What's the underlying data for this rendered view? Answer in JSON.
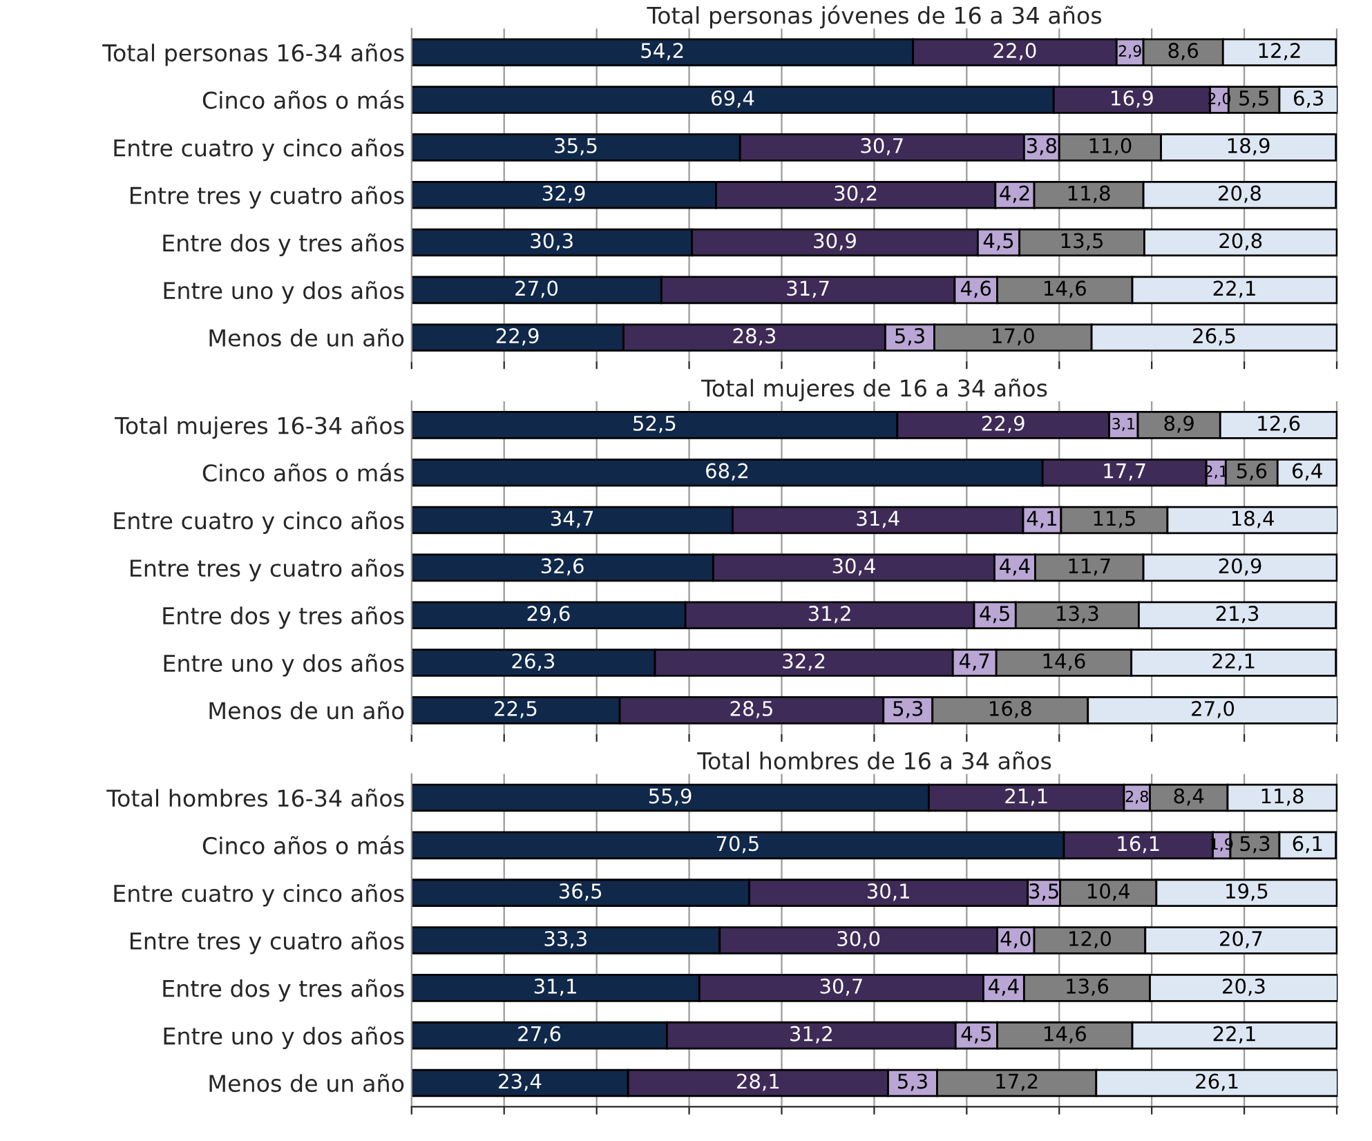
{
  "chart_data": [
    {
      "type": "bar",
      "title": "Total personas jóvenes de 16 a 34 años",
      "orientation": "horizontal",
      "stacked": true,
      "grid": "x",
      "tick_labels": "y",
      "categories": [
        "Total personas 16-34 años",
        "Cinco años o más",
        "Entre cuatro y cinco años",
        "Entre tres y cuatro años",
        "Entre dos y tres años",
        "Entre uno y dos años",
        "Menos de un año"
      ],
      "series": [
        {
          "color": "#10284a",
          "values": [
            54.2,
            69.4,
            35.5,
            32.9,
            30.3,
            27.0,
            22.9
          ],
          "value_labels": [
            "54,2",
            "69,4",
            "35,5",
            "32,9",
            "30,3",
            "27,0",
            "22,9"
          ]
        },
        {
          "color": "#3f2b57",
          "values": [
            22.0,
            16.9,
            30.7,
            30.2,
            30.9,
            31.7,
            28.3
          ],
          "value_labels": [
            "22,0",
            "16,9",
            "30,7",
            "30,2",
            "30,9",
            "31,7",
            "28,3"
          ]
        },
        {
          "color": "#b9a6d4",
          "values": [
            2.9,
            2.0,
            3.8,
            4.2,
            4.5,
            4.6,
            5.3
          ],
          "value_labels": [
            "2,9",
            "2,0",
            "3,8",
            "4,2",
            "4,5",
            "4,6",
            "5,3"
          ]
        },
        {
          "color": "#808080",
          "values": [
            8.6,
            5.5,
            11.0,
            11.8,
            13.5,
            14.6,
            17.0
          ],
          "value_labels": [
            "8,6",
            "5,5",
            "11,0",
            "11,8",
            "13,5",
            "14,6",
            "17,0"
          ]
        },
        {
          "color": "#dde7f3",
          "values": [
            12.2,
            6.3,
            18.9,
            20.8,
            20.8,
            22.1,
            26.5
          ],
          "value_labels": [
            "12,2",
            "6,3",
            "18,9",
            "20,8",
            "20,8",
            "22,1",
            "26,5"
          ]
        }
      ]
    },
    {
      "type": "bar",
      "title": "Total mujeres de 16 a 34 años",
      "orientation": "horizontal",
      "stacked": true,
      "grid": "x",
      "tick_labels": "y",
      "categories": [
        "Total mujeres 16-34 años",
        "Cinco años o más",
        "Entre cuatro y cinco años",
        "Entre tres y cuatro años",
        "Entre dos y tres años",
        "Entre uno y dos años",
        "Menos de un año"
      ],
      "series": [
        {
          "color": "#10284a",
          "values": [
            52.5,
            68.2,
            34.7,
            32.6,
            29.6,
            26.3,
            22.5
          ],
          "value_labels": [
            "52,5",
            "68,2",
            "34,7",
            "32,6",
            "29,6",
            "26,3",
            "22,5"
          ]
        },
        {
          "color": "#3f2b57",
          "values": [
            22.9,
            17.7,
            31.4,
            30.4,
            31.2,
            32.2,
            28.5
          ],
          "value_labels": [
            "22,9",
            "17,7",
            "31,4",
            "30,4",
            "31,2",
            "32,2",
            "28,5"
          ]
        },
        {
          "color": "#b9a6d4",
          "values": [
            3.1,
            2.1,
            4.1,
            4.4,
            4.5,
            4.7,
            5.3
          ],
          "value_labels": [
            "3,1",
            "2,1",
            "4,1",
            "4,4",
            "4,5",
            "4,7",
            "5,3"
          ]
        },
        {
          "color": "#808080",
          "values": [
            8.9,
            5.6,
            11.5,
            11.7,
            13.3,
            14.6,
            16.8
          ],
          "value_labels": [
            "8,9",
            "5,6",
            "11,5",
            "11,7",
            "13,3",
            "14,6",
            "16,8"
          ]
        },
        {
          "color": "#dde7f3",
          "values": [
            12.6,
            6.4,
            18.4,
            20.9,
            21.3,
            22.1,
            27.0
          ],
          "value_labels": [
            "12,6",
            "6,4",
            "18,4",
            "20,9",
            "21,3",
            "22,1",
            "27,0"
          ]
        }
      ]
    },
    {
      "type": "bar",
      "title": "Total hombres de 16 a 34 años",
      "orientation": "horizontal",
      "stacked": true,
      "grid": "x",
      "tick_labels": "y",
      "categories": [
        "Total hombres 16-34 años",
        "Cinco años o más",
        "Entre cuatro y cinco años",
        "Entre tres y cuatro años",
        "Entre dos y tres años",
        "Entre uno y dos años",
        "Menos de un año"
      ],
      "series": [
        {
          "color": "#10284a",
          "values": [
            55.9,
            70.5,
            36.5,
            33.3,
            31.1,
            27.6,
            23.4
          ],
          "value_labels": [
            "55,9",
            "70,5",
            "36,5",
            "33,3",
            "31,1",
            "27,6",
            "23,4"
          ]
        },
        {
          "color": "#3f2b57",
          "values": [
            21.1,
            16.1,
            30.1,
            30.0,
            30.7,
            31.2,
            28.1
          ],
          "value_labels": [
            "21,1",
            "16,1",
            "30,1",
            "30,0",
            "30,7",
            "31,2",
            "28,1"
          ]
        },
        {
          "color": "#b9a6d4",
          "values": [
            2.8,
            1.9,
            3.5,
            4.0,
            4.4,
            4.5,
            5.3
          ],
          "value_labels": [
            "2,8",
            "1,9",
            "3,5",
            "4,0",
            "4,4",
            "4,5",
            "5,3"
          ]
        },
        {
          "color": "#808080",
          "values": [
            8.4,
            5.3,
            10.4,
            12.0,
            13.6,
            14.6,
            17.2
          ],
          "value_labels": [
            "8,4",
            "5,3",
            "10,4",
            "12,0",
            "13,6",
            "14,6",
            "17,2"
          ]
        },
        {
          "color": "#dde7f3",
          "values": [
            11.8,
            6.1,
            19.5,
            20.7,
            20.3,
            22.1,
            26.1
          ],
          "value_labels": [
            "11,8",
            "6,1",
            "19,5",
            "20,7",
            "20,3",
            "22,1",
            "26,1"
          ]
        }
      ]
    }
  ]
}
